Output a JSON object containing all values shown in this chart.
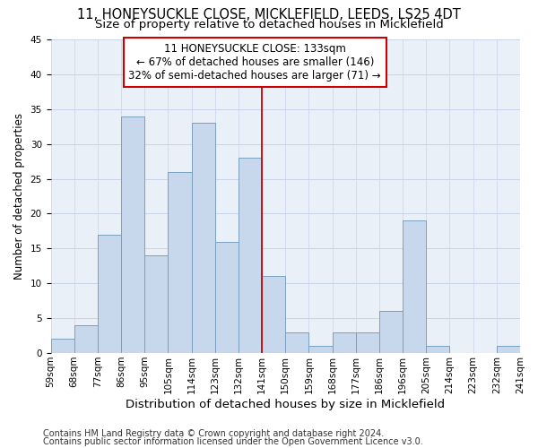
{
  "title": "11, HONEYSUCKLE CLOSE, MICKLEFIELD, LEEDS, LS25 4DT",
  "subtitle": "Size of property relative to detached houses in Micklefield",
  "xlabel": "Distribution of detached houses by size in Micklefield",
  "ylabel": "Number of detached properties",
  "bin_labels": [
    "59sqm",
    "68sqm",
    "77sqm",
    "86sqm",
    "95sqm",
    "105sqm",
    "114sqm",
    "123sqm",
    "132sqm",
    "141sqm",
    "150sqm",
    "159sqm",
    "168sqm",
    "177sqm",
    "186sqm",
    "196sqm",
    "205sqm",
    "214sqm",
    "223sqm",
    "232sqm",
    "241sqm"
  ],
  "bar_heights": [
    2,
    4,
    17,
    34,
    14,
    26,
    33,
    16,
    28,
    11,
    3,
    1,
    3,
    3,
    6,
    19,
    1,
    0,
    0,
    1
  ],
  "bar_color": "#c8d8ec",
  "bar_edge_color": "#7aa0c0",
  "vline_index": 8,
  "vline_color": "#cc0000",
  "annotation_text": "11 HONEYSUCKLE CLOSE: 133sqm\n← 67% of detached houses are smaller (146)\n32% of semi-detached houses are larger (71) →",
  "annotation_box_color": "#ffffff",
  "annotation_box_edge": "#cc0000",
  "ylim": [
    0,
    45
  ],
  "yticks": [
    0,
    5,
    10,
    15,
    20,
    25,
    30,
    35,
    40,
    45
  ],
  "grid_color": "#c8d4e8",
  "background_color": "#eaf0f8",
  "footer1": "Contains HM Land Registry data © Crown copyright and database right 2024.",
  "footer2": "Contains public sector information licensed under the Open Government Licence v3.0.",
  "title_fontsize": 10.5,
  "subtitle_fontsize": 9.5,
  "xlabel_fontsize": 9.5,
  "ylabel_fontsize": 8.5,
  "tick_fontsize": 7.5,
  "annot_fontsize": 8.5,
  "footer_fontsize": 7.0
}
